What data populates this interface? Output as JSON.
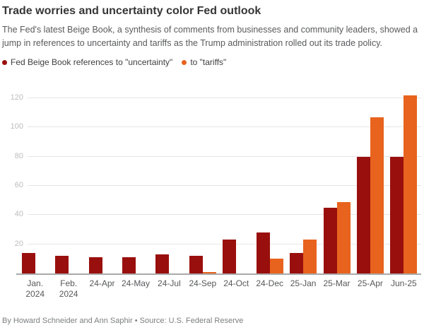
{
  "header": {
    "title": "Trade worries and uncertainty color Fed outlook",
    "subtitle": "The Fed's latest Beige Book, a synthesis of comments from businesses and community leaders, showed a jump in references to uncertainty and tariffs as the Trump administration rolled out its trade policy."
  },
  "legend": [
    {
      "label": "Fed Beige Book references to \"uncertainty\"",
      "color": "#990f0d"
    },
    {
      "label": "to \"tariffs\"",
      "color": "#e8631d"
    }
  ],
  "chart_data": {
    "type": "bar",
    "title": "Trade worries and uncertainty color Fed outlook",
    "categories": [
      "Jan. 2024",
      "Feb. 2024",
      "24-Apr",
      "24-May",
      "24-Jul",
      "24-Sep",
      "24-Oct",
      "24-Dec",
      "25-Jan",
      "25-Mar",
      "25-Apr",
      "Jun-25"
    ],
    "series": [
      {
        "name": "uncertainty",
        "color": "#990f0d",
        "values": [
          14,
          12,
          11,
          11,
          13,
          12,
          23,
          28,
          14,
          45,
          80,
          80
        ]
      },
      {
        "name": "tariffs",
        "color": "#e8631d",
        "values": [
          0,
          0,
          0,
          0,
          0,
          1,
          0,
          10,
          23,
          49,
          107,
          122
        ]
      }
    ],
    "xlabel": "",
    "ylabel": "",
    "ylim": [
      0,
      130
    ],
    "yticks": [
      20,
      40,
      60,
      80,
      100,
      120
    ],
    "grid": true,
    "legend_position": "top"
  },
  "footer": {
    "byline": "By Howard Schneider and Ann Saphir • Source: U.S. Federal Reserve"
  },
  "colors": {
    "uncertainty": "#990f0d",
    "tariffs": "#e8631d",
    "gridline": "#e6e6e6",
    "baseline": "#a9a9a9"
  }
}
